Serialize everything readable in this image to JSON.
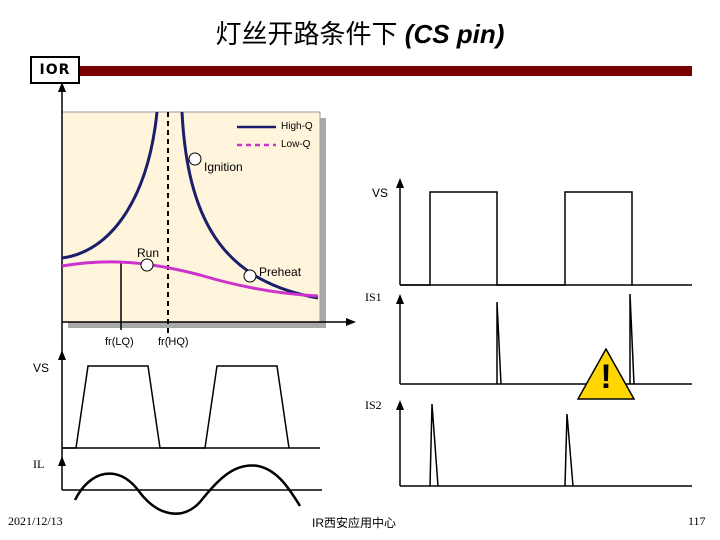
{
  "slide": {
    "title_cn": "灯丝开路条件下",
    "title_en": "(CS pin)",
    "logo_text": "IOR"
  },
  "plot": {
    "legend": {
      "high_q": "High-Q",
      "low_q": "Low-Q"
    },
    "labels": {
      "ignition": "Ignition",
      "run": "Run",
      "preheat": "Preheat",
      "fr_lq": "fr(LQ)",
      "fr_hq": "fr(HQ)"
    },
    "colors": {
      "high_q": "#1a1f6b",
      "low_q": "#cc33cc",
      "panel": "#fff5dc"
    }
  },
  "waveforms": {
    "vs_right": "VS",
    "is1": "IS1",
    "vs_left": "VS",
    "is2": "IS2",
    "il": "IL"
  },
  "warning": {
    "symbol": "!",
    "color": "#ffd600"
  },
  "footer": {
    "date": "2021/12/13",
    "center": "IR西安应用中心",
    "page": "117"
  }
}
